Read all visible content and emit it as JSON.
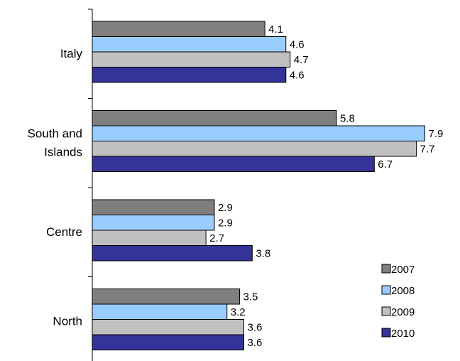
{
  "chart_data": {
    "type": "bar",
    "orientation": "horizontal",
    "categories": [
      "Italy",
      "South and Islands",
      "Centre",
      "North"
    ],
    "category_lines": [
      [
        "Italy"
      ],
      [
        "South and",
        "Islands"
      ],
      [
        "Centre"
      ],
      [
        "North"
      ]
    ],
    "series": [
      {
        "name": "2007",
        "values": [
          4.1,
          5.8,
          2.9,
          3.5
        ],
        "color": "#7f7f7f"
      },
      {
        "name": "2008",
        "values": [
          4.6,
          7.9,
          2.9,
          3.2
        ],
        "color": "#99ccff"
      },
      {
        "name": "2009",
        "values": [
          4.7,
          7.7,
          2.7,
          3.6
        ],
        "color": "#c0c0c0"
      },
      {
        "name": "2010",
        "values": [
          4.6,
          6.7,
          3.8,
          3.6
        ],
        "color": "#333399"
      }
    ],
    "xlim": [
      0,
      8
    ],
    "grid": false,
    "legend_position": "bottom-right",
    "value_labels": true
  }
}
